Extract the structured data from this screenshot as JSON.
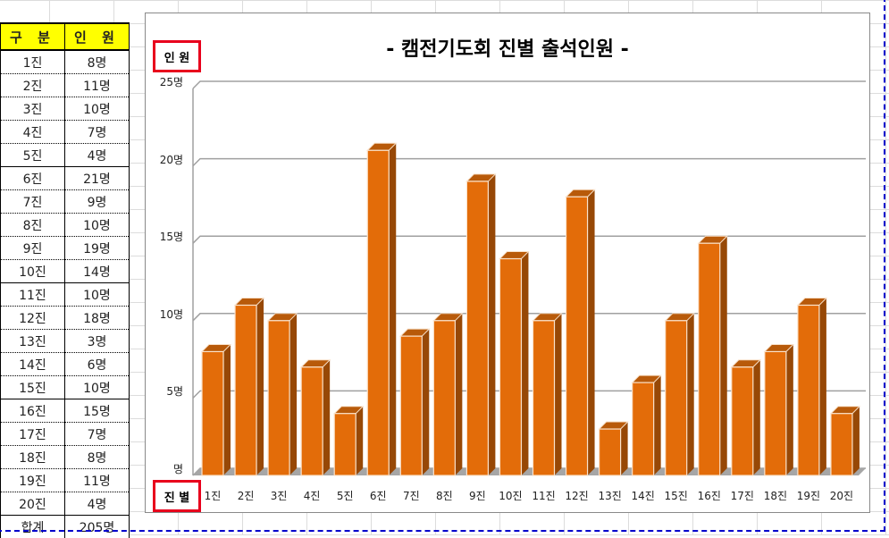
{
  "table": {
    "headers": [
      "구  분",
      "인  원"
    ],
    "rows": [
      {
        "label": "1진",
        "value": "8명"
      },
      {
        "label": "2진",
        "value": "11명"
      },
      {
        "label": "3진",
        "value": "10명"
      },
      {
        "label": "4진",
        "value": "7명"
      },
      {
        "label": "5진",
        "value": "4명"
      },
      {
        "label": "6진",
        "value": "21명"
      },
      {
        "label": "7진",
        "value": "9명"
      },
      {
        "label": "8진",
        "value": "10명"
      },
      {
        "label": "9진",
        "value": "19명"
      },
      {
        "label": "10진",
        "value": "14명"
      },
      {
        "label": "11진",
        "value": "10명"
      },
      {
        "label": "12진",
        "value": "18명"
      },
      {
        "label": "13진",
        "value": "3명"
      },
      {
        "label": "14진",
        "value": "6명"
      },
      {
        "label": "15진",
        "value": "10명"
      },
      {
        "label": "16진",
        "value": "15명"
      },
      {
        "label": "17진",
        "value": "7명"
      },
      {
        "label": "18진",
        "value": "8명"
      },
      {
        "label": "19진",
        "value": "11명"
      },
      {
        "label": "20진",
        "value": "4명"
      }
    ],
    "total": {
      "label": "합계",
      "value": "205명"
    }
  },
  "colors": {
    "bar_front": "#e36c09",
    "bar_top": "#b85a0a",
    "bar_side": "#974806",
    "header_bg": "#ffff00",
    "axis_box": "#e8001c",
    "selection": "#0000cc"
  },
  "chart_data": {
    "type": "bar",
    "title": "- 캠전기도회 진별 출석인원 -",
    "xlabel": "진 별",
    "ylabel": "인 원",
    "categories": [
      "1진",
      "2진",
      "3진",
      "4진",
      "5진",
      "6진",
      "7진",
      "8진",
      "9진",
      "10진",
      "11진",
      "12진",
      "13진",
      "14진",
      "15진",
      "16진",
      "17진",
      "18진",
      "19진",
      "20진"
    ],
    "values": [
      8,
      11,
      10,
      7,
      4,
      21,
      9,
      10,
      19,
      14,
      10,
      18,
      3,
      6,
      10,
      15,
      7,
      8,
      11,
      4
    ],
    "ylim": [
      0,
      25
    ],
    "yticks": [
      "명",
      "5명",
      "10명",
      "15명",
      "20명",
      "25명"
    ],
    "grid": true,
    "legend": "none",
    "style": "3d-column"
  }
}
